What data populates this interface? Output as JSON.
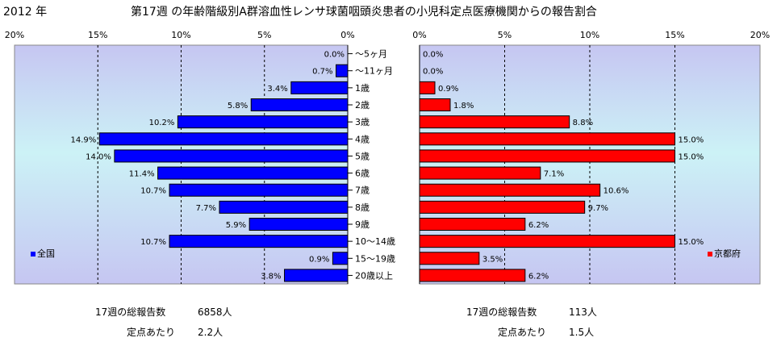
{
  "header": {
    "year": "2012 年",
    "title": "第17週 の年齢階級別A群溶血性レンサ球菌咽頭炎患者の小児科定点医療機関からの報告割合"
  },
  "chart_data": [
    {
      "type": "bar",
      "orientation": "horizontal",
      "direction": "right-to-left",
      "legend": "全国",
      "legend_position": "left-bottom",
      "color": "#0000ff",
      "xlim": [
        0,
        20
      ],
      "x_ticks": [
        "0%",
        "5%",
        "10%",
        "15%",
        "20%"
      ],
      "grid": true,
      "categories": [
        "～5ヶ月",
        "～11ヶ月",
        "1歳",
        "2歳",
        "3歳",
        "4歳",
        "5歳",
        "6歳",
        "7歳",
        "8歳",
        "9歳",
        "10～14歳",
        "15～19歳",
        "20歳以上"
      ],
      "values": [
        0.0,
        0.7,
        3.4,
        5.8,
        10.2,
        14.9,
        14.0,
        11.4,
        10.7,
        7.7,
        5.9,
        10.7,
        0.9,
        3.8
      ],
      "labels": [
        "0.0%",
        "0.7%",
        "3.4%",
        "5.8%",
        "10.2%",
        "14.9%",
        "14.0%",
        "11.4%",
        "10.7%",
        "7.7%",
        "5.9%",
        "10.7%",
        "0.9%",
        "3.8%"
      ]
    },
    {
      "type": "bar",
      "orientation": "horizontal",
      "direction": "left-to-right",
      "legend": "京都府",
      "legend_position": "right-bottom",
      "color": "#ff0000",
      "xlim": [
        0,
        20
      ],
      "x_ticks": [
        "0%",
        "5%",
        "10%",
        "15%",
        "20%"
      ],
      "grid": true,
      "categories": [
        "～5ヶ月",
        "～11ヶ月",
        "1歳",
        "2歳",
        "3歳",
        "4歳",
        "5歳",
        "6歳",
        "7歳",
        "8歳",
        "9歳",
        "10～14歳",
        "15～19歳",
        "20歳以上"
      ],
      "values": [
        0.0,
        0.0,
        0.9,
        1.8,
        8.8,
        15.0,
        15.0,
        7.1,
        10.6,
        9.7,
        6.2,
        15.0,
        3.5,
        6.2
      ],
      "labels": [
        "0.0%",
        "0.0%",
        "0.9%",
        "1.8%",
        "8.8%",
        "15.0%",
        "15.0%",
        "7.1%",
        "10.6%",
        "9.7%",
        "6.2%",
        "15.0%",
        "3.5%",
        "6.2%"
      ]
    }
  ],
  "footer": {
    "national": {
      "reports_label": "17週の総報告数",
      "reports_value": "6858人",
      "per_site_label": "定点あたり",
      "per_site_value": "2.2人"
    },
    "kyoto": {
      "reports_label": "17週の総報告数",
      "reports_value": "113人",
      "per_site_label": "定点あたり",
      "per_site_value": "1.5人"
    }
  }
}
